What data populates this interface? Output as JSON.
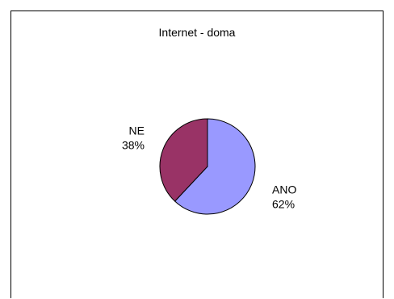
{
  "chart_data": {
    "type": "pie",
    "title": "Internet - doma",
    "slices": [
      {
        "label": "ANO",
        "value": 62,
        "value_label": "62%",
        "color": "#9999FF"
      },
      {
        "label": "NE",
        "value": 38,
        "value_label": "38%",
        "color": "#993366"
      }
    ],
    "start_angle_deg": 90,
    "direction": "clockwise",
    "legend": "none"
  }
}
